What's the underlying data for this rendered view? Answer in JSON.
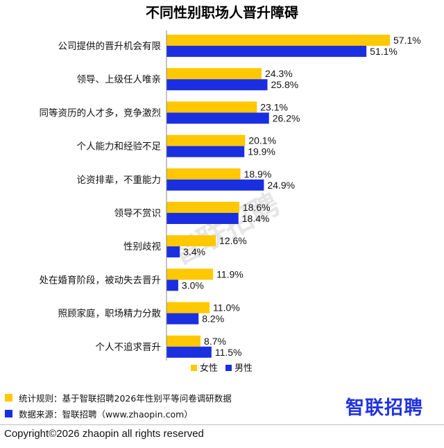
{
  "chart_data": {
    "type": "bar",
    "orientation": "horizontal",
    "title": "不同性别职场人晋升障碍",
    "categories": [
      "公司提供的晋升机会有限",
      "领导、上级任人唯亲",
      "同等资历的人才多，竞争激烈",
      "个人能力和经验不足",
      "论资排辈，不重能力",
      "领导不赏识",
      "性别歧视",
      "处在婚育阶段，被动失去晋升",
      "照顾家庭，职场精力分散",
      "个人不追求晋升"
    ],
    "series": [
      {
        "name": "女性",
        "color": "#ffc800",
        "values": [
          57.1,
          24.3,
          23.1,
          20.1,
          18.9,
          18.6,
          12.6,
          11.9,
          11.0,
          8.7
        ],
        "labels": [
          "57.1%",
          "24.3%",
          "23.1%",
          "20.1%",
          "18.9%",
          "18.6%",
          "12.6%",
          "11.9%",
          "11.0%",
          "8.7%"
        ]
      },
      {
        "name": "男性",
        "color": "#1a2fe0",
        "values": [
          51.1,
          25.8,
          26.2,
          19.9,
          24.9,
          18.4,
          3.4,
          3.0,
          8.2,
          11.5
        ],
        "labels": [
          "51.1%",
          "25.8%",
          "26.2%",
          "19.9%",
          "24.9%",
          "18.4%",
          "3.4%",
          "3.0%",
          "8.2%",
          "11.5%"
        ]
      }
    ],
    "xlim": [
      0,
      60
    ],
    "grid": false,
    "legend_position": "bottom-center"
  },
  "watermark": "智联招聘",
  "notes": [
    {
      "text": "统计规则：基于智联招聘2026年性别平等问卷调研数据",
      "color": "#ffc800"
    },
    {
      "text": "数据来源：智联招聘（www.zhaopin.com）",
      "color": "#1a2fe0"
    }
  ],
  "brand": "智联招聘",
  "copyright": "Copyright©2026 zhaopin all rights reserved"
}
